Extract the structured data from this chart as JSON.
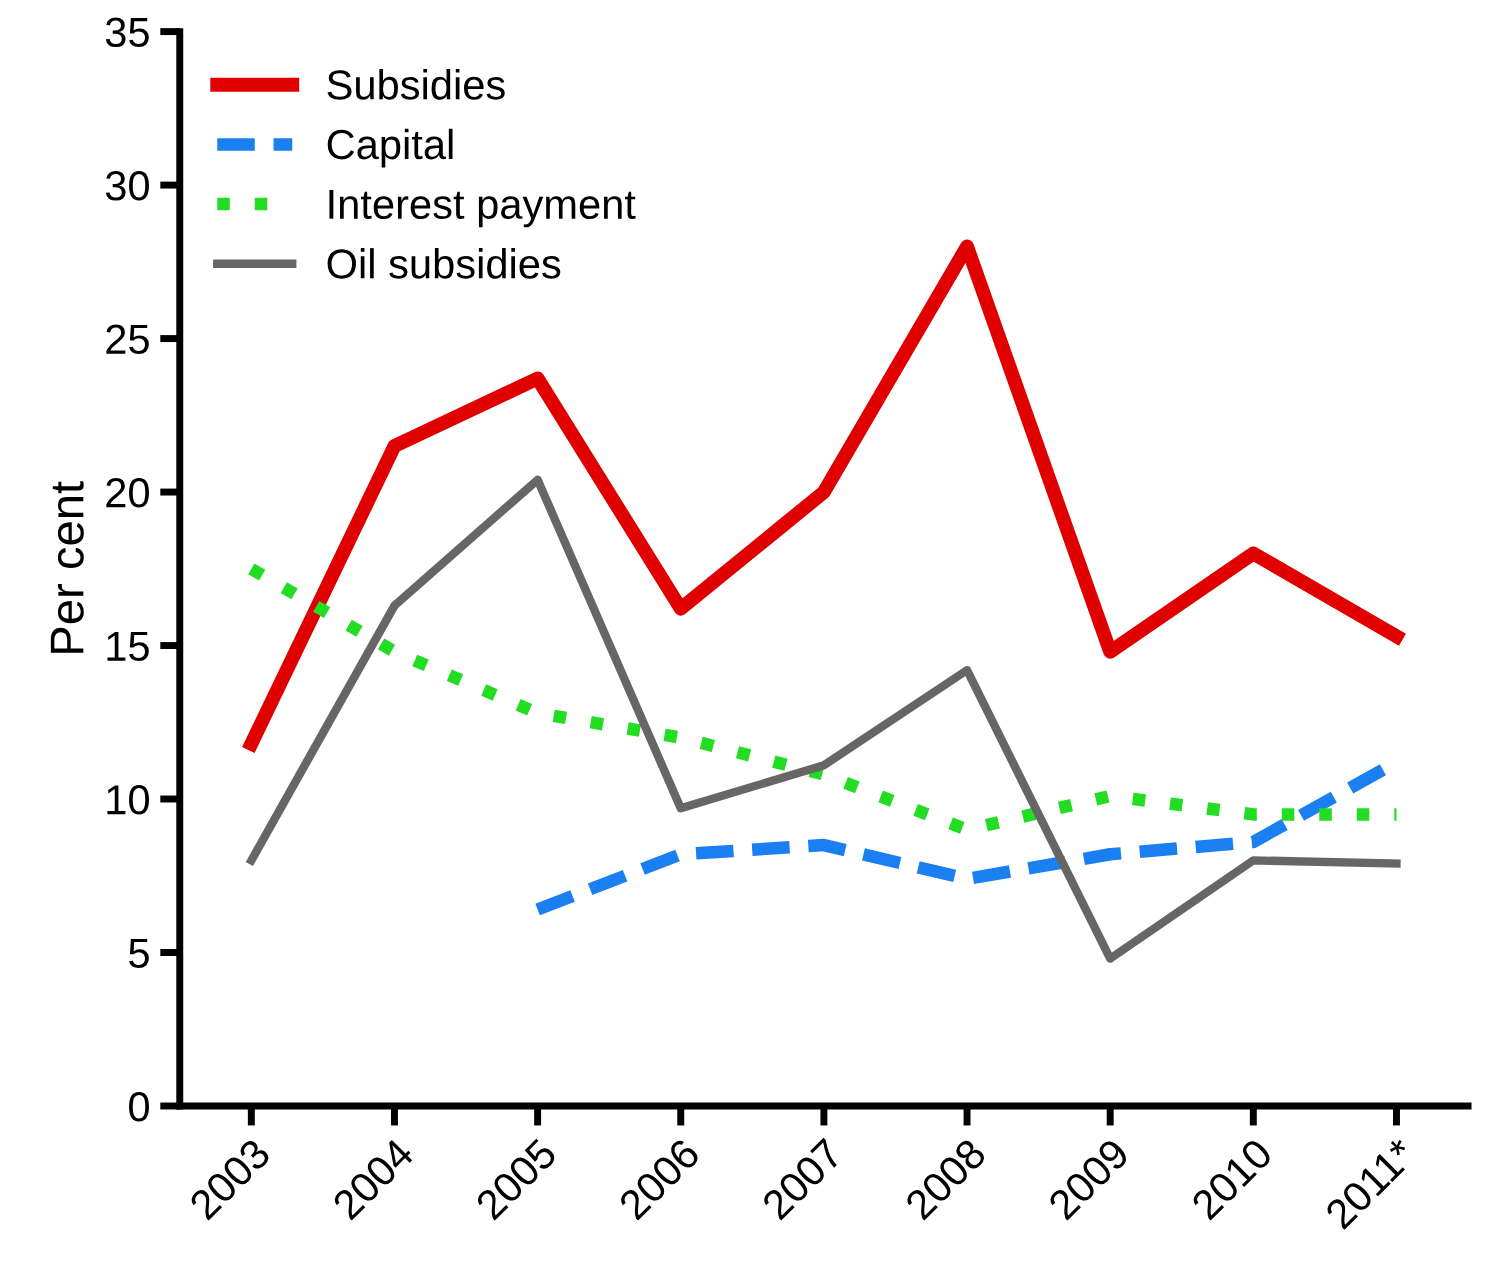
{
  "chart_data": {
    "type": "line",
    "ylabel": "Per cent",
    "categories": [
      "2003",
      "2004",
      "2005",
      "2006",
      "2007",
      "2008",
      "2009",
      "2010",
      "2011*"
    ],
    "series": [
      {
        "name": "Subsidies",
        "color": "#e00000",
        "line_style": "solid",
        "values": [
          11.8,
          21.5,
          23.7,
          16.2,
          20.0,
          28.0,
          14.8,
          18.0,
          15.3
        ]
      },
      {
        "name": "Capital",
        "color": "#1a7ff0",
        "line_style": "dashed",
        "values": [
          null,
          null,
          6.4,
          8.2,
          8.5,
          7.4,
          8.2,
          8.6,
          11.2
        ]
      },
      {
        "name": "Interest payment",
        "color": "#22dd22",
        "line_style": "dotted",
        "values": [
          17.5,
          14.8,
          12.8,
          12.0,
          10.8,
          9.0,
          10.1,
          9.5,
          9.5
        ]
      },
      {
        "name": "Oil subsidies",
        "color": "#666666",
        "line_style": "solid",
        "values": [
          8.0,
          16.3,
          20.4,
          9.7,
          11.1,
          14.2,
          4.8,
          8.0,
          7.9
        ]
      }
    ],
    "ylim": [
      0,
      35
    ],
    "yticks": [
      0,
      5,
      10,
      15,
      20,
      25,
      30,
      35
    ],
    "grid": false,
    "legend": "top left",
    "marker": "none"
  }
}
